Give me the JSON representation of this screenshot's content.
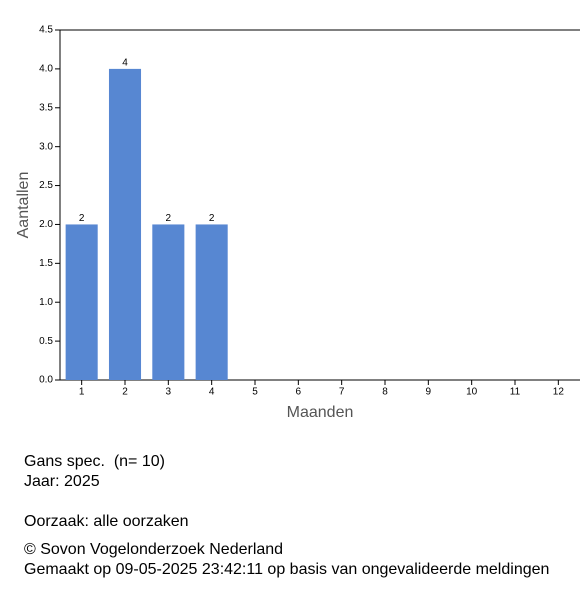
{
  "chart_data": {
    "type": "bar",
    "x_label": "Maanden",
    "y_label": "Aantallen",
    "categories": [
      "1",
      "2",
      "3",
      "4",
      "5",
      "6",
      "7",
      "8",
      "9",
      "10",
      "11",
      "12"
    ],
    "values": [
      2,
      4,
      2,
      2,
      null,
      null,
      null,
      null,
      null,
      null,
      null,
      null
    ],
    "color": "#5787d2",
    "ylim": [
      0,
      4.5
    ],
    "yticks": [
      {
        "value": 0,
        "label": "0.0"
      },
      {
        "value": 0.5,
        "label": "0.5"
      },
      {
        "value": 1,
        "label": "1.0"
      },
      {
        "value": 1.5,
        "label": "1.5"
      },
      {
        "value": 2,
        "label": "2.0"
      },
      {
        "value": 2.5,
        "label": "2.5"
      },
      {
        "value": 3,
        "label": "3.0"
      },
      {
        "value": 3.5,
        "label": "3.5"
      },
      {
        "value": 4,
        "label": "4.0"
      },
      {
        "value": 4.5,
        "label": "4.5"
      }
    ],
    "grid": false
  },
  "info": [
    "Gans spec.  (n= 10)",
    "Jaar: 2025",
    "Oorzaak: alle oorzaken",
    "© Sovon Vogelonderzoek Nederland",
    "Gemaakt op 09-05-2025 23:42:11 op basis van ongevalideerde meldingen"
  ]
}
